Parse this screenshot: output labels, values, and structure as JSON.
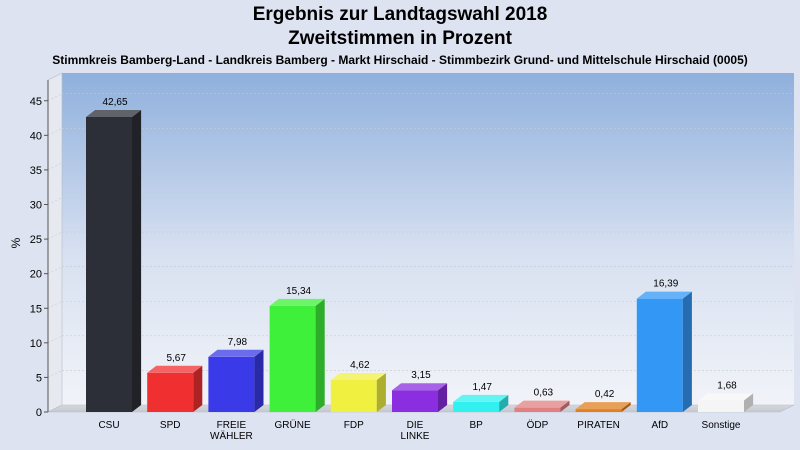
{
  "chart_data": {
    "type": "bar",
    "title": "Ergebnis zur Landtagswahl 2018",
    "title_line2": "Zweitstimmen in Prozent",
    "subtitle": "Stimmkreis Bamberg-Land - Landkreis Bamberg - Markt Hirschaid - Stimmbezirk Grund- und Mittelschule Hirschaid (0005)",
    "ylabel": "%",
    "xlabel": "",
    "ylim": [
      0,
      48
    ],
    "yticks": [
      0,
      5,
      10,
      15,
      20,
      25,
      30,
      35,
      40,
      45
    ],
    "categories": [
      "CSU",
      "SPD",
      "FREIE WÄHLER",
      "GRÜNE",
      "FDP",
      "DIE LINKE",
      "BP",
      "ÖDP",
      "PIRATEN",
      "AfD",
      "Sonstige"
    ],
    "category_lines": [
      [
        "CSU"
      ],
      [
        "SPD"
      ],
      [
        "FREIE",
        "WÄHLER"
      ],
      [
        "GRÜNE"
      ],
      [
        "FDP"
      ],
      [
        "DIE",
        "LINKE"
      ],
      [
        "BP"
      ],
      [
        "ÖDP"
      ],
      [
        "PIRATEN"
      ],
      [
        "AfD"
      ],
      [
        "Sonstige"
      ]
    ],
    "values": [
      42.65,
      5.67,
      7.98,
      15.34,
      4.62,
      3.15,
      1.47,
      0.63,
      0.42,
      16.39,
      1.68
    ],
    "value_labels": [
      "42,65",
      "5,67",
      "7,98",
      "15,34",
      "4,62",
      "3,15",
      "1,47",
      "0,63",
      "0,42",
      "16,39",
      "1,68"
    ],
    "colors": [
      "#2c2f38",
      "#f03030",
      "#3a3ae8",
      "#3ef03a",
      "#f0f040",
      "#8a2ee0",
      "#30f0f0",
      "#e08080",
      "#e08020",
      "#3398f5",
      "#f5f5f5"
    ],
    "grid": true,
    "legend": "none"
  }
}
